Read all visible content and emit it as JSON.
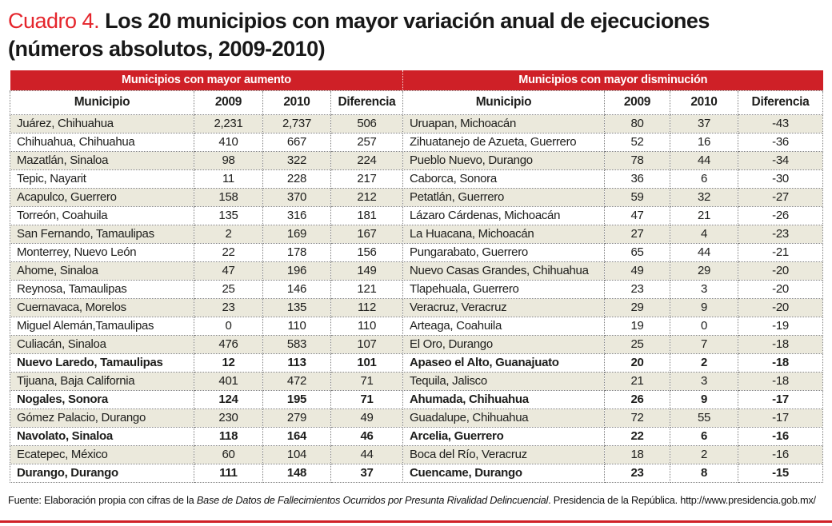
{
  "title": {
    "prefix": "Cuadro 4.",
    "main": " Los 20 municipios con mayor variación anual de ejecuciones",
    "subtitle": "(números absolutos, 2009-2010)"
  },
  "columns": [
    "Municipio",
    "2009",
    "2010",
    "Diferencia"
  ],
  "tables": {
    "increase": {
      "header": "Municipios con mayor aumento",
      "rows": [
        {
          "municipio": "Juárez, Chihuahua",
          "y2009": "2,231",
          "y2010": "2,737",
          "diferencia": "506",
          "bold": false
        },
        {
          "municipio": "Chihuahua, Chihuahua",
          "y2009": "410",
          "y2010": "667",
          "diferencia": "257",
          "bold": false
        },
        {
          "municipio": "Mazatlán, Sinaloa",
          "y2009": "98",
          "y2010": "322",
          "diferencia": "224",
          "bold": false
        },
        {
          "municipio": "Tepic, Nayarit",
          "y2009": "11",
          "y2010": "228",
          "diferencia": "217",
          "bold": false
        },
        {
          "municipio": "Acapulco, Guerrero",
          "y2009": "158",
          "y2010": "370",
          "diferencia": "212",
          "bold": false
        },
        {
          "municipio": "Torreón, Coahuila",
          "y2009": "135",
          "y2010": "316",
          "diferencia": "181",
          "bold": false
        },
        {
          "municipio": "San Fernando, Tamaulipas",
          "y2009": "2",
          "y2010": "169",
          "diferencia": "167",
          "bold": false
        },
        {
          "municipio": "Monterrey, Nuevo León",
          "y2009": "22",
          "y2010": "178",
          "diferencia": "156",
          "bold": false
        },
        {
          "municipio": "Ahome, Sinaloa",
          "y2009": "47",
          "y2010": "196",
          "diferencia": "149",
          "bold": false
        },
        {
          "municipio": "Reynosa, Tamaulipas",
          "y2009": "25",
          "y2010": "146",
          "diferencia": "121",
          "bold": false
        },
        {
          "municipio": "Cuernavaca, Morelos",
          "y2009": "23",
          "y2010": "135",
          "diferencia": "112",
          "bold": false
        },
        {
          "municipio": "Miguel Alemán,Tamaulipas",
          "y2009": "0",
          "y2010": "110",
          "diferencia": "110",
          "bold": false
        },
        {
          "municipio": "Culiacán, Sinaloa",
          "y2009": "476",
          "y2010": "583",
          "diferencia": "107",
          "bold": false
        },
        {
          "municipio": "Nuevo Laredo, Tamaulipas",
          "y2009": "12",
          "y2010": "113",
          "diferencia": "101",
          "bold": true
        },
        {
          "municipio": "Tijuana, Baja California",
          "y2009": "401",
          "y2010": "472",
          "diferencia": "71",
          "bold": false
        },
        {
          "municipio": "Nogales, Sonora",
          "y2009": "124",
          "y2010": "195",
          "diferencia": "71",
          "bold": true
        },
        {
          "municipio": "Gómez Palacio, Durango",
          "y2009": "230",
          "y2010": "279",
          "diferencia": "49",
          "bold": false
        },
        {
          "municipio": "Navolato, Sinaloa",
          "y2009": "118",
          "y2010": "164",
          "diferencia": "46",
          "bold": true
        },
        {
          "municipio": "Ecatepec, México",
          "y2009": "60",
          "y2010": "104",
          "diferencia": "44",
          "bold": false
        },
        {
          "municipio": "Durango, Durango",
          "y2009": "111",
          "y2010": "148",
          "diferencia": "37",
          "bold": true
        }
      ]
    },
    "decrease": {
      "header": "Municipios con mayor disminución",
      "rows": [
        {
          "municipio": "Uruapan, Michoacán",
          "y2009": "80",
          "y2010": "37",
          "diferencia": "-43",
          "bold": false
        },
        {
          "municipio": "Zihuatanejo de Azueta, Guerrero",
          "y2009": "52",
          "y2010": "16",
          "diferencia": "-36",
          "bold": false
        },
        {
          "municipio": "Pueblo Nuevo, Durango",
          "y2009": "78",
          "y2010": "44",
          "diferencia": "-34",
          "bold": false
        },
        {
          "municipio": "Caborca, Sonora",
          "y2009": "36",
          "y2010": "6",
          "diferencia": "-30",
          "bold": false
        },
        {
          "municipio": "Petatlán, Guerrero",
          "y2009": "59",
          "y2010": "32",
          "diferencia": "-27",
          "bold": false
        },
        {
          "municipio": "Lázaro Cárdenas, Michoacán",
          "y2009": "47",
          "y2010": "21",
          "diferencia": "-26",
          "bold": false
        },
        {
          "municipio": "La Huacana, Michoacán",
          "y2009": "27",
          "y2010": "4",
          "diferencia": "-23",
          "bold": false
        },
        {
          "municipio": "Pungarabato, Guerrero",
          "y2009": "65",
          "y2010": "44",
          "diferencia": "-21",
          "bold": false
        },
        {
          "municipio": "Nuevo Casas Grandes, Chihuahua",
          "y2009": "49",
          "y2010": "29",
          "diferencia": "-20",
          "bold": false
        },
        {
          "municipio": "Tlapehuala, Guerrero",
          "y2009": "23",
          "y2010": "3",
          "diferencia": "-20",
          "bold": false
        },
        {
          "municipio": "Veracruz, Veracruz",
          "y2009": "29",
          "y2010": "9",
          "diferencia": "-20",
          "bold": false
        },
        {
          "municipio": "Arteaga, Coahuila",
          "y2009": "19",
          "y2010": "0",
          "diferencia": "-19",
          "bold": false
        },
        {
          "municipio": "El Oro, Durango",
          "y2009": "25",
          "y2010": "7",
          "diferencia": "-18",
          "bold": false
        },
        {
          "municipio": "Apaseo el Alto, Guanajuato",
          "y2009": "20",
          "y2010": "2",
          "diferencia": "-18",
          "bold": true
        },
        {
          "municipio": "Tequila, Jalisco",
          "y2009": "21",
          "y2010": "3",
          "diferencia": "-18",
          "bold": false
        },
        {
          "municipio": "Ahumada, Chihuahua",
          "y2009": "26",
          "y2010": "9",
          "diferencia": "-17",
          "bold": true
        },
        {
          "municipio": "Guadalupe, Chihuahua",
          "y2009": "72",
          "y2010": "55",
          "diferencia": "-17",
          "bold": false
        },
        {
          "municipio": "Arcelia, Guerrero",
          "y2009": "22",
          "y2010": "6",
          "diferencia": "-16",
          "bold": true
        },
        {
          "municipio": "Boca del Río, Veracruz",
          "y2009": "18",
          "y2010": "2",
          "diferencia": "-16",
          "bold": false
        },
        {
          "municipio": "Cuencame, Durango",
          "y2009": "23",
          "y2010": "8",
          "diferencia": "-15",
          "bold": true
        }
      ]
    }
  },
  "footer": {
    "prefix": "Fuente: Elaboración propia con cifras de la ",
    "source": "Base de Datos de Fallecimientos Ocurridos por Presunta Rivalidad Delincuencial",
    "suffix": ". Presidencia de la República. http://www.presidencia.gob.mx/"
  },
  "colors": {
    "band_red": "#cf2027",
    "title_red": "#e5252c",
    "row_beige": "#ebe9dc"
  }
}
